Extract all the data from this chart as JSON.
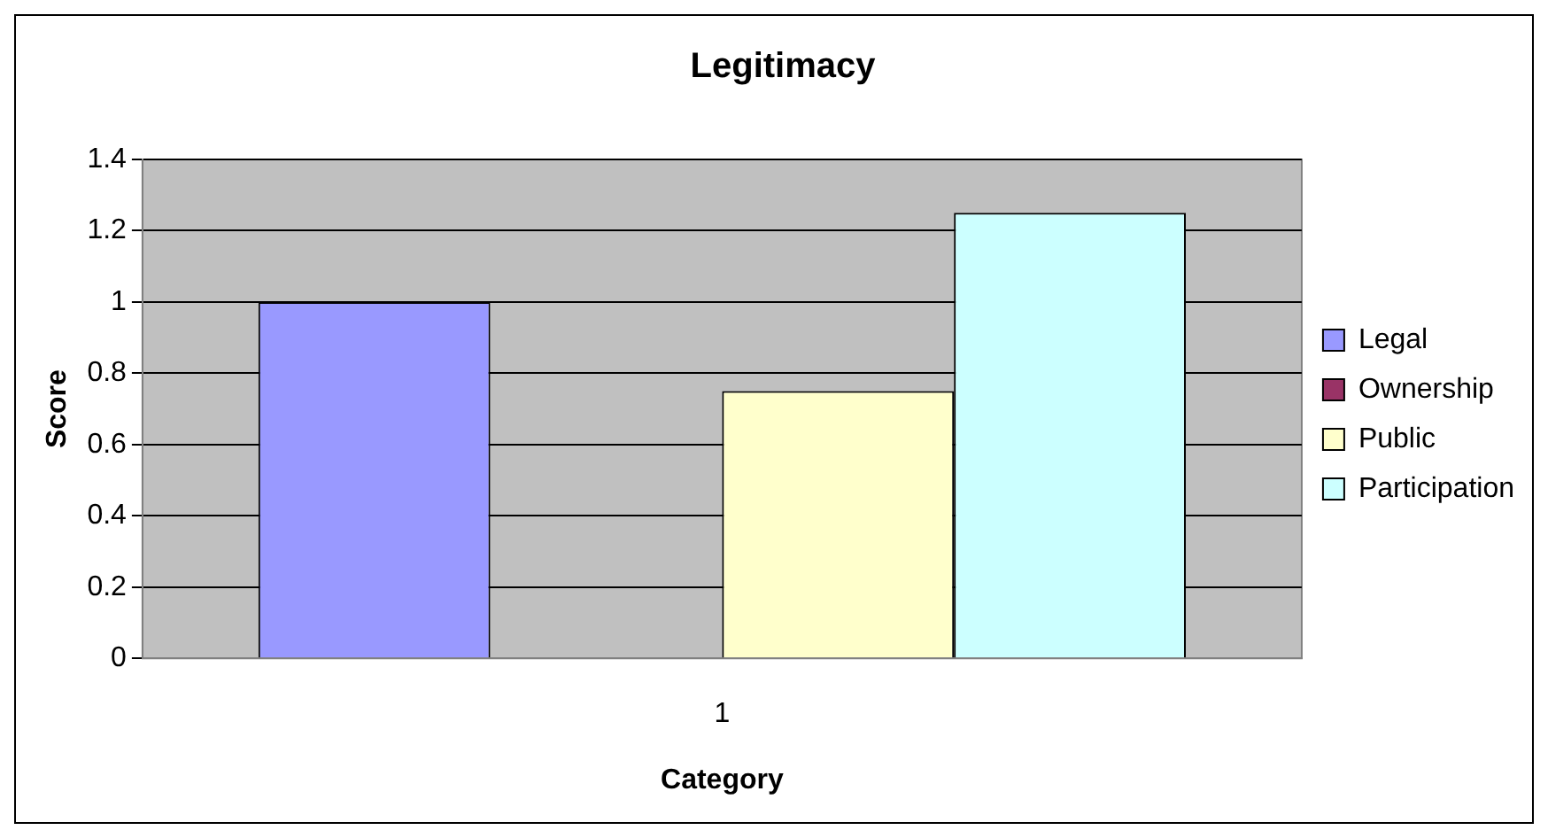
{
  "chart_data": {
    "type": "bar",
    "title": "Legitimacy",
    "xlabel": "Category",
    "ylabel": "Score",
    "categories": [
      "1"
    ],
    "series": [
      {
        "name": "Legal",
        "color": "#9999ff",
        "values": [
          1.0
        ]
      },
      {
        "name": "Ownership",
        "color": "#993366",
        "values": [
          0
        ]
      },
      {
        "name": "Public",
        "color": "#ffffcc",
        "values": [
          0.75
        ]
      },
      {
        "name": "Participation",
        "color": "#ccffff",
        "values": [
          1.25
        ]
      }
    ],
    "ylim": [
      0,
      1.4
    ],
    "yticks": [
      0,
      0.2,
      0.4,
      0.6,
      0.8,
      1,
      1.2,
      1.4
    ],
    "grid": "y",
    "legend": "right"
  }
}
